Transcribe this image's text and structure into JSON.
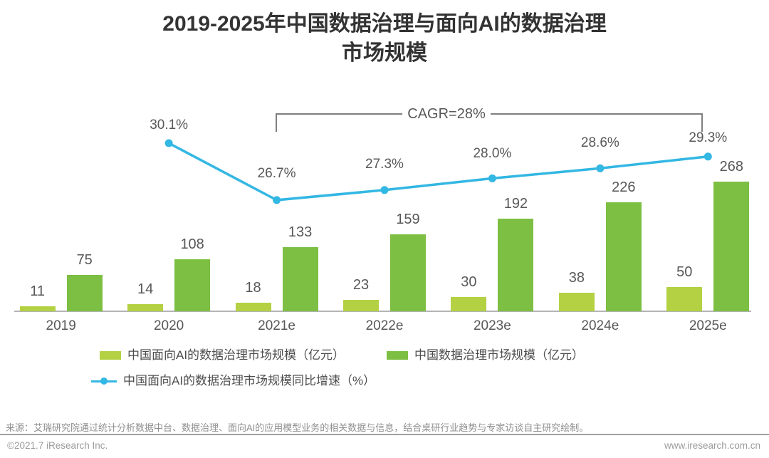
{
  "title": {
    "line1": "2019-2025年中国数据治理与面向AI的数据治理",
    "line2": "市场规模"
  },
  "annotation": {
    "cagr": "CAGR=28%"
  },
  "chart_data": {
    "type": "bar+line",
    "title": "2019-2025年中国数据治理与面向AI的数据治理市场规模",
    "categories": [
      "2019",
      "2020",
      "2021e",
      "2022e",
      "2023e",
      "2024e",
      "2025e"
    ],
    "series": [
      {
        "name": "中国面向AI的数据治理市场规模（亿元）",
        "type": "bar",
        "color": "#b3d143",
        "values": [
          11,
          14,
          18,
          23,
          30,
          38,
          50
        ]
      },
      {
        "name": "中国数据治理市场规模（亿元）",
        "type": "bar",
        "color": "#7cbf42",
        "values": [
          75,
          108,
          133,
          159,
          192,
          226,
          268
        ]
      },
      {
        "name": "中国面向AI的数据治理市场规模同比增速（%）",
        "type": "line",
        "color": "#33b7e3",
        "values": [
          null,
          30.1,
          26.7,
          27.3,
          28.0,
          28.6,
          29.3
        ],
        "point_labels": [
          "",
          "30.1%",
          "26.7%",
          "27.3%",
          "28.0%",
          "28.6%",
          "29.3%"
        ]
      }
    ],
    "annotation": "CAGR=28%",
    "grid": false,
    "legend_position": "bottom",
    "value_labels": true
  },
  "legend": {
    "items": [
      {
        "label": "中国面向AI的数据治理市场规模（亿元）",
        "swatch": "rect",
        "color": "#b3d143"
      },
      {
        "label": "中国数据治理市场规模（亿元）",
        "swatch": "rect",
        "color": "#7cbf42"
      },
      {
        "label": "中国面向AI的数据治理市场规模同比增速（%）",
        "swatch": "line-dot",
        "color": "#33b7e3"
      }
    ]
  },
  "source": "来源：艾瑞研究院通过统计分析数据中台、数据治理、面向AI的应用模型业务的相关数据与信息，结合桌研行业趋势与专家访谈自主研究绘制。",
  "footer": {
    "left": "©2021.7 iResearch Inc.",
    "right": "www.iresearch.com.cn"
  },
  "colors": {
    "bar_ai": "#b3d143",
    "bar_total": "#7cbf42",
    "line_growth": "#33b7e3",
    "title_text": "#333333",
    "label_text": "#595757",
    "axis": "#b4b4b4",
    "bracket": "#7f7f7f"
  }
}
